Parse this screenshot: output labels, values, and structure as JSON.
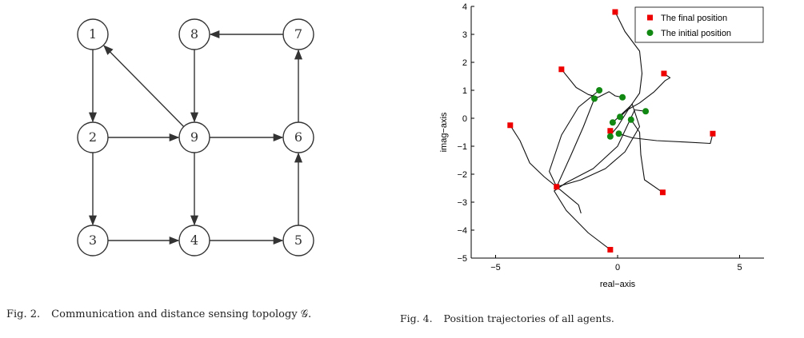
{
  "figure2": {
    "caption_label": "Fig. 2.",
    "caption_text": "Communication and distance sensing topology 𝒢.",
    "nodes": [
      {
        "id": "1",
        "row": 0,
        "col": 0
      },
      {
        "id": "8",
        "row": 0,
        "col": 1
      },
      {
        "id": "7",
        "row": 0,
        "col": 2
      },
      {
        "id": "2",
        "row": 1,
        "col": 0
      },
      {
        "id": "9",
        "row": 1,
        "col": 1
      },
      {
        "id": "6",
        "row": 1,
        "col": 2
      },
      {
        "id": "3",
        "row": 2,
        "col": 0
      },
      {
        "id": "4",
        "row": 2,
        "col": 1
      },
      {
        "id": "5",
        "row": 2,
        "col": 2
      }
    ],
    "edges": [
      [
        "1",
        "2"
      ],
      [
        "2",
        "3"
      ],
      [
        "2",
        "9"
      ],
      [
        "9",
        "1"
      ],
      [
        "8",
        "9"
      ],
      [
        "7",
        "8"
      ],
      [
        "9",
        "6"
      ],
      [
        "6",
        "7"
      ],
      [
        "9",
        "4"
      ],
      [
        "3",
        "4"
      ],
      [
        "4",
        "5"
      ],
      [
        "5",
        "6"
      ]
    ]
  },
  "figure4": {
    "caption_label": "Fig. 4.",
    "caption_text": "Position trajectories of all agents.",
    "chart_data": {
      "type": "scatter",
      "xlabel": "real−axis",
      "ylabel": "imag−axis",
      "xlim": [
        -6,
        6
      ],
      "ylim": [
        -5,
        4
      ],
      "xticks": [
        -5,
        0,
        5
      ],
      "xtick_labels": [
        "−5",
        "0",
        "5"
      ],
      "yticks": [
        4,
        3,
        2,
        1,
        0,
        -1,
        -2,
        -3,
        -4,
        -5
      ],
      "ytick_labels": [
        "4",
        "3",
        "2",
        "1",
        "0",
        "−1",
        "−2",
        "−3",
        "−4",
        "−5"
      ],
      "legend_position": "top-right",
      "series": [
        {
          "name": "The final position",
          "color": "#ee0000",
          "marker": "square",
          "points": [
            {
              "x": -0.1,
              "y": 3.8
            },
            {
              "x": -2.3,
              "y": 1.75
            },
            {
              "x": 1.9,
              "y": 1.6
            },
            {
              "x": -4.4,
              "y": -0.25
            },
            {
              "x": -0.3,
              "y": -0.45
            },
            {
              "x": 3.9,
              "y": -0.55
            },
            {
              "x": -2.5,
              "y": -2.45
            },
            {
              "x": 1.85,
              "y": -2.65
            },
            {
              "x": -0.3,
              "y": -4.7
            }
          ]
        },
        {
          "name": "The initial position",
          "color": "#118811",
          "marker": "circle",
          "points": [
            {
              "x": -0.75,
              "y": 1.0
            },
            {
              "x": -0.95,
              "y": 0.7
            },
            {
              "x": 0.2,
              "y": 0.75
            },
            {
              "x": 1.15,
              "y": 0.25
            },
            {
              "x": 0.1,
              "y": 0.05
            },
            {
              "x": 0.55,
              "y": -0.05
            },
            {
              "x": -0.2,
              "y": -0.15
            },
            {
              "x": 0.05,
              "y": -0.55
            },
            {
              "x": -0.3,
              "y": -0.65
            }
          ]
        }
      ],
      "trajectories": [
        [
          [
            -0.1,
            3.8
          ],
          [
            0.3,
            3.1
          ],
          [
            0.9,
            2.4
          ],
          [
            1.0,
            1.6
          ],
          [
            0.9,
            0.9
          ],
          [
            0.5,
            0.4
          ],
          [
            0.0,
            -0.3
          ],
          [
            -0.3,
            -0.6
          ]
        ],
        [
          [
            -2.3,
            1.75
          ],
          [
            -1.7,
            1.1
          ],
          [
            -1.2,
            0.85
          ],
          [
            -0.8,
            0.75
          ],
          [
            -0.35,
            0.95
          ],
          [
            -0.1,
            0.8
          ],
          [
            0.2,
            0.75
          ]
        ],
        [
          [
            1.9,
            1.6
          ],
          [
            2.15,
            1.45
          ],
          [
            1.95,
            1.35
          ],
          [
            1.5,
            0.95
          ],
          [
            0.9,
            0.55
          ],
          [
            0.4,
            0.3
          ],
          [
            0.1,
            0.05
          ]
        ],
        [
          [
            -4.4,
            -0.25
          ],
          [
            -4.0,
            -0.8
          ],
          [
            -3.6,
            -1.6
          ],
          [
            -3.0,
            -2.1
          ],
          [
            -2.5,
            -2.45
          ]
        ],
        [
          [
            3.9,
            -0.55
          ],
          [
            3.8,
            -0.9
          ],
          [
            2.8,
            -0.85
          ],
          [
            1.6,
            -0.8
          ],
          [
            0.6,
            -0.7
          ],
          [
            0.05,
            -0.55
          ]
        ],
        [
          [
            -2.5,
            -2.45
          ],
          [
            -1.9,
            -1.3
          ],
          [
            -1.4,
            -0.3
          ],
          [
            -0.95,
            0.7
          ]
        ],
        [
          [
            1.85,
            -2.65
          ],
          [
            1.1,
            -2.2
          ],
          [
            0.95,
            -1.3
          ],
          [
            0.9,
            -0.5
          ],
          [
            0.55,
            -0.05
          ]
        ],
        [
          [
            -0.3,
            -4.7
          ],
          [
            -1.2,
            -4.1
          ],
          [
            -2.1,
            -3.3
          ],
          [
            -2.6,
            -2.6
          ],
          [
            -2.1,
            -2.3
          ],
          [
            -1.0,
            -1.8
          ],
          [
            0.0,
            -1.0
          ],
          [
            0.7,
            0.3
          ],
          [
            1.15,
            0.25
          ]
        ],
        [
          [
            -2.5,
            -2.45
          ],
          [
            -1.5,
            -2.2
          ],
          [
            -0.5,
            -1.8
          ],
          [
            0.3,
            -1.2
          ],
          [
            0.9,
            -0.3
          ],
          [
            0.6,
            0.5
          ],
          [
            -0.2,
            -0.15
          ]
        ],
        [
          [
            -2.5,
            -2.45
          ],
          [
            -1.6,
            -3.1
          ],
          [
            -1.5,
            -3.4
          ]
        ],
        [
          [
            -0.75,
            1.0
          ],
          [
            -1.6,
            0.4
          ],
          [
            -2.3,
            -0.6
          ],
          [
            -2.8,
            -1.9
          ],
          [
            -2.5,
            -2.45
          ]
        ]
      ]
    }
  }
}
